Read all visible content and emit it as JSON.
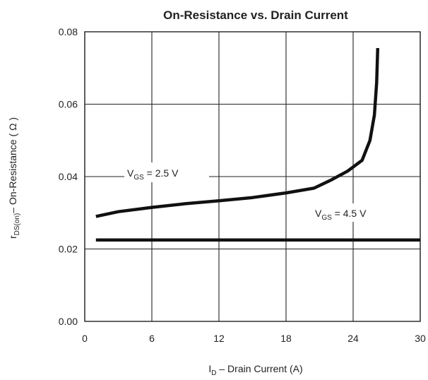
{
  "chart_data": {
    "type": "line",
    "title": "On-Resistance vs. Drain Current",
    "xlabel": {
      "main": "I",
      "sub": "D",
      "rest": "  –  Drain Current (A)"
    },
    "ylabel": {
      "main": "r",
      "sub": "DS(on)",
      "rest": "– On-Resistance ( Ω )"
    },
    "xlim": [
      0,
      30
    ],
    "ylim": [
      0,
      0.08
    ],
    "x_ticks": [
      0,
      6,
      12,
      18,
      24,
      30
    ],
    "y_ticks": [
      0.0,
      0.02,
      0.04,
      0.06,
      0.08
    ],
    "x_tick_labels": [
      "0",
      "6",
      "12",
      "18",
      "24",
      "30"
    ],
    "y_tick_labels": [
      "0.00",
      "0.02",
      "0.04",
      "0.06",
      "0.08"
    ],
    "grid": true,
    "series": [
      {
        "name": {
          "main": "V",
          "sub": "GS",
          "rest": " = 2.5 V"
        },
        "x": [
          1,
          3,
          6,
          9,
          12,
          15,
          18,
          20.5,
          22,
          23.5,
          24.8,
          25.5,
          25.9,
          26.1,
          26.2
        ],
        "y": [
          0.029,
          0.0303,
          0.0315,
          0.0325,
          0.0333,
          0.0342,
          0.0355,
          0.0368,
          0.039,
          0.0415,
          0.0445,
          0.05,
          0.057,
          0.066,
          0.0755
        ]
      },
      {
        "name": {
          "main": "V",
          "sub": "GS",
          "rest": " = 4.5 V"
        },
        "x": [
          1,
          30
        ],
        "y": [
          0.0225,
          0.0225
        ]
      }
    ],
    "colors": {
      "line": "#111111",
      "grid": "#222222",
      "frame": "#222222"
    }
  }
}
